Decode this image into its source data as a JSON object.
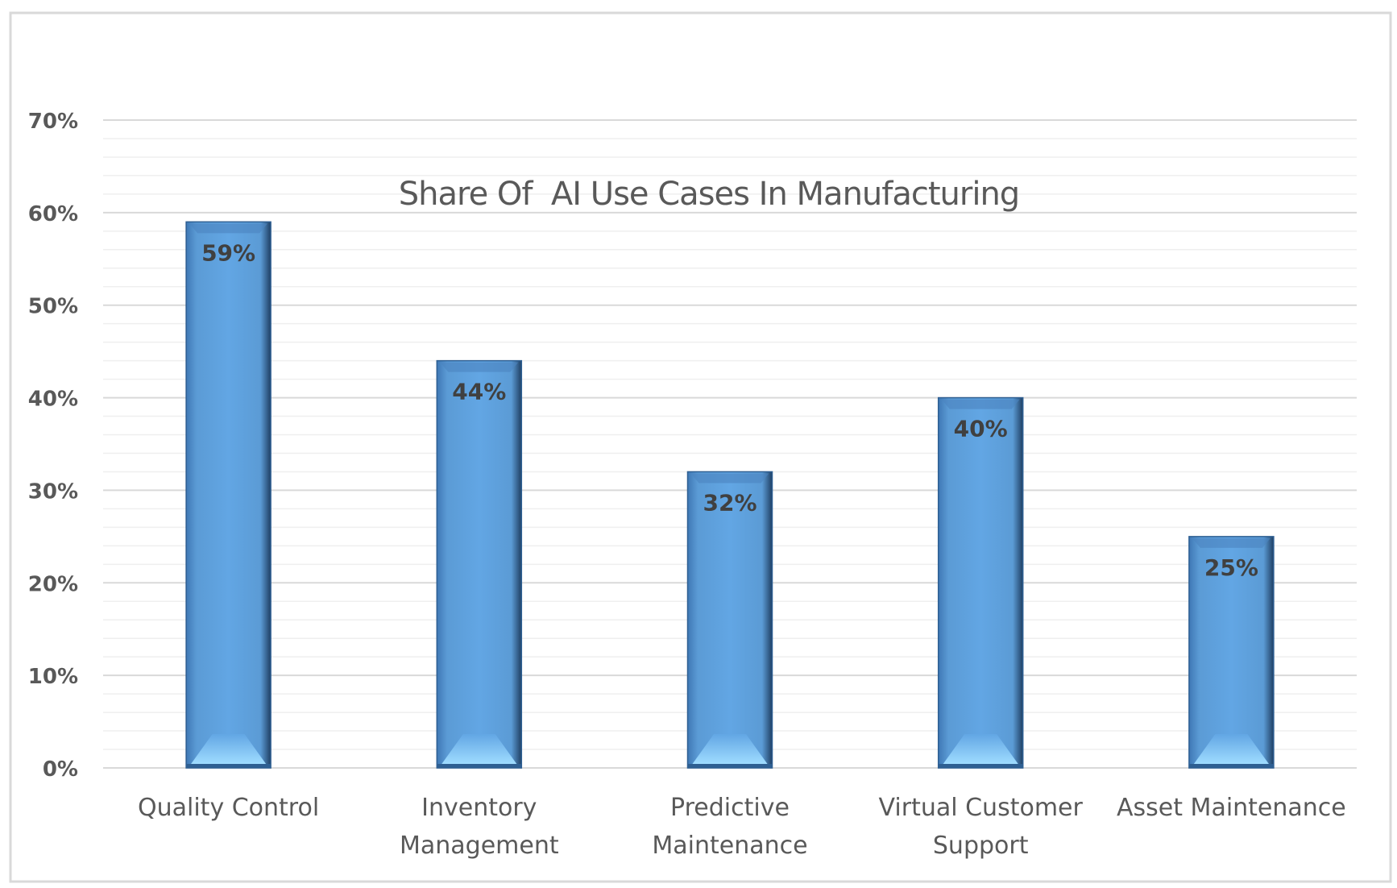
{
  "chart_data": {
    "type": "bar",
    "title": "Share Of  AI Use Cases In Manufacturing",
    "categories": [
      [
        "Quality Control"
      ],
      [
        "Inventory",
        "Management"
      ],
      [
        "Predictive",
        "Maintenance"
      ],
      [
        "Virtual Customer",
        "Support"
      ],
      [
        "Asset Maintenance"
      ]
    ],
    "values": [
      59,
      44,
      32,
      40,
      25
    ],
    "data_labels": [
      "59%",
      "44%",
      "32%",
      "40%",
      "25%"
    ],
    "ylim": [
      0,
      70
    ],
    "yticks": [
      "0%",
      "10%",
      "20%",
      "30%",
      "40%",
      "50%",
      "60%",
      "70%"
    ],
    "xlabel": "",
    "ylabel": "",
    "grid": true,
    "bar_color": "#5B9BD5"
  }
}
